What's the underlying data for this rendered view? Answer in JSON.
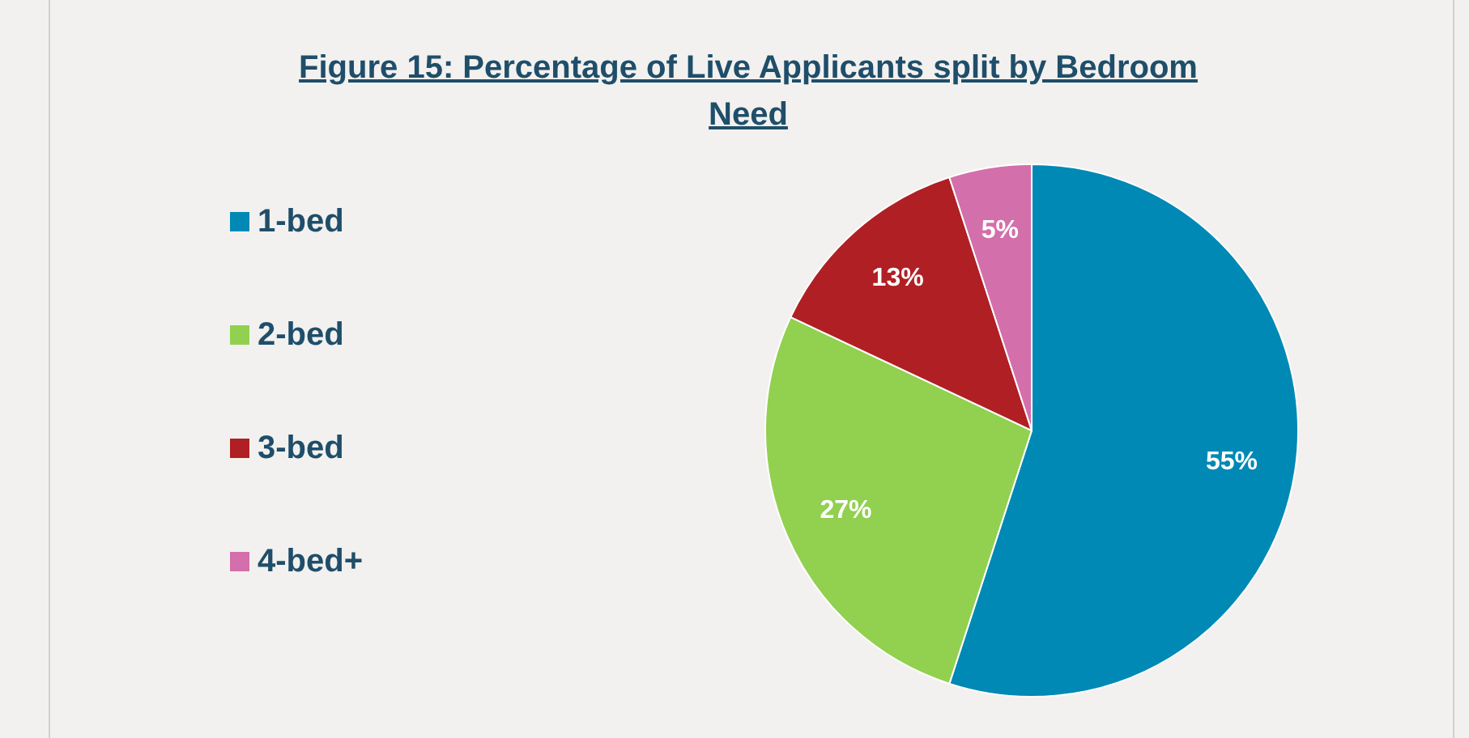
{
  "chart_data": {
    "type": "pie",
    "title": "Figure 15: Percentage of Live Applicants split by Bedroom Need",
    "categories": [
      "1-bed",
      "2-bed",
      "3-bed",
      "4-bed+"
    ],
    "values": [
      55,
      27,
      13,
      5
    ],
    "colors": [
      "#0089b5",
      "#92d050",
      "#b01f24",
      "#d36fab"
    ],
    "value_labels": [
      "55%",
      "27%",
      "13%",
      "5%"
    ],
    "legend": "left"
  }
}
